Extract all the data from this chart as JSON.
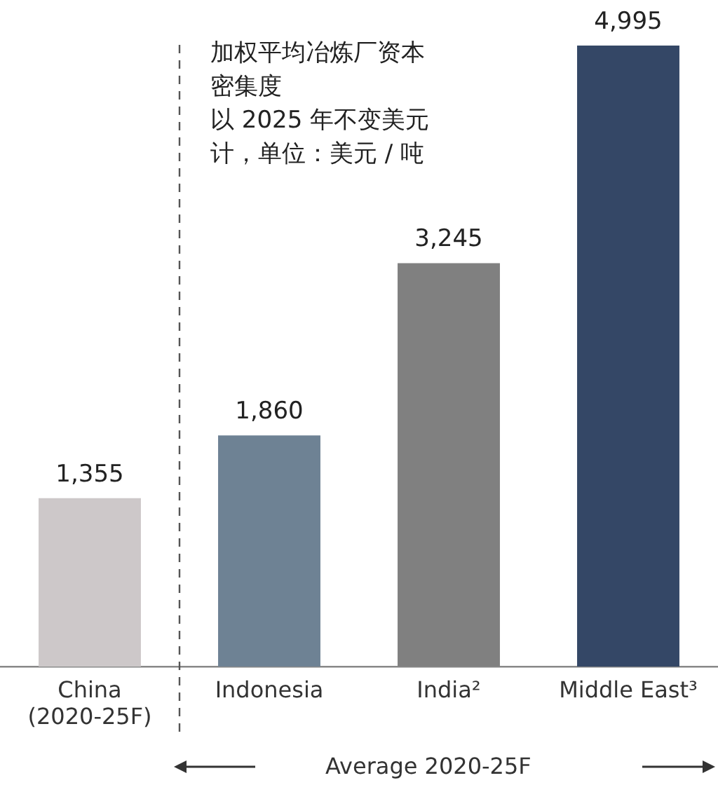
{
  "chart_data": {
    "type": "bar",
    "title": "加权平均冶炼厂资本密集度",
    "subtitle": "以 2025 年不变美元计，单位：美元 / 吨",
    "categories": [
      "China\n(2020-25F)",
      "Indonesia",
      "India²",
      "Middle East³"
    ],
    "values": [
      1355,
      1860,
      3245,
      4995
    ],
    "colors": [
      "#cdc8c9",
      "#6e8294",
      "#808080",
      "#344766"
    ],
    "value_labels": [
      "1,355",
      "1,860",
      "3,245",
      "4,995"
    ],
    "annotations": [
      "Average 2020-25F"
    ],
    "grid": false,
    "legend": false
  }
}
